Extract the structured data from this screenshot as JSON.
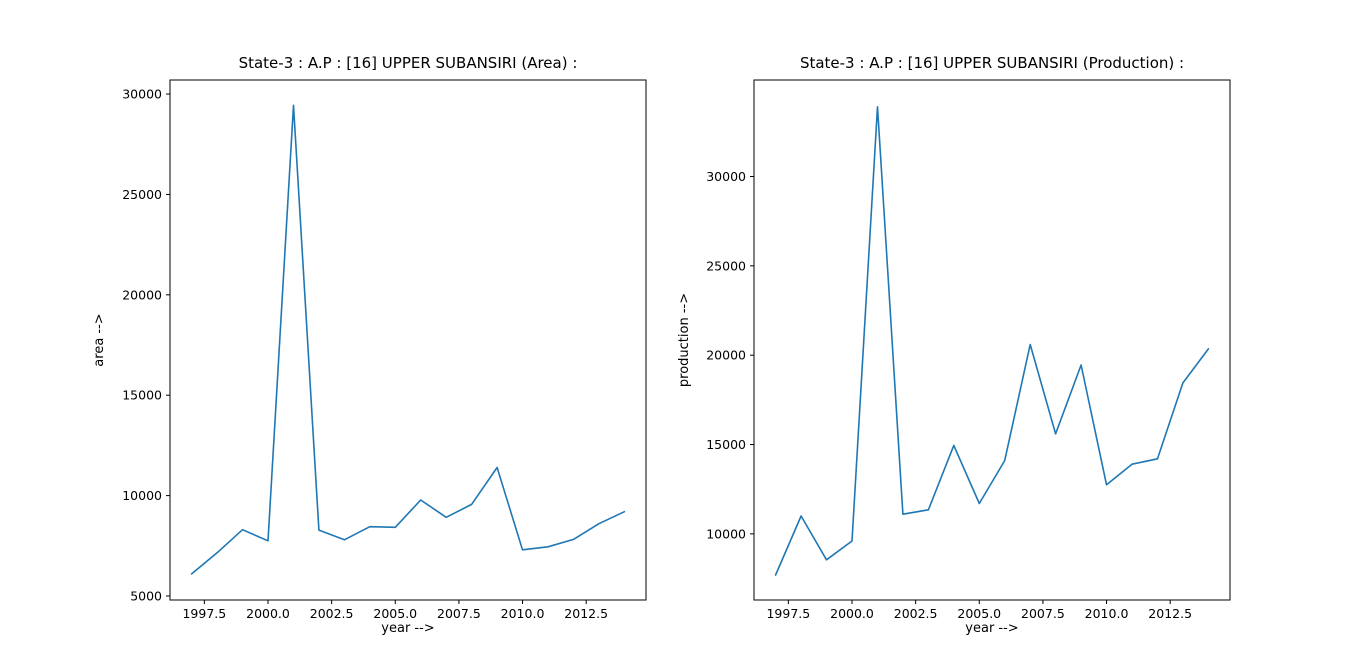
{
  "figure": {
    "background": "#ffffff",
    "text_color": "#000000"
  },
  "chart_data": [
    {
      "type": "line",
      "title": "State-3 : A.P : [16] UPPER SUBANSIRI (Area) :",
      "xlabel": "year -->",
      "ylabel": "area -->",
      "legend": null,
      "grid": false,
      "line_color": "#1f77b4",
      "x": [
        1997,
        1998,
        1999,
        2000,
        2001,
        2002,
        2003,
        2004,
        2005,
        2006,
        2007,
        2008,
        2009,
        2010,
        2011,
        2012,
        2013,
        2014
      ],
      "values": [
        6100,
        7150,
        8300,
        7750,
        29440,
        8280,
        7800,
        8450,
        8420,
        9780,
        8920,
        9560,
        11400,
        7300,
        7450,
        7820,
        8600,
        9200
      ],
      "xlim": [
        1996.15,
        2014.85
      ],
      "ylim": [
        4800,
        30700
      ],
      "xticks": [
        1997.5,
        2000.0,
        2002.5,
        2005.0,
        2007.5,
        2010.0,
        2012.5
      ],
      "xtick_labels": [
        "1997.5",
        "2000.0",
        "2002.5",
        "2005.0",
        "2007.5",
        "2010.0",
        "2012.5"
      ],
      "yticks": [
        5000,
        10000,
        15000,
        20000,
        25000,
        30000
      ],
      "ytick_labels": [
        "5000",
        "10000",
        "15000",
        "20000",
        "25000",
        "30000"
      ]
    },
    {
      "type": "line",
      "title": "State-3 : A.P : [16] UPPER SUBANSIRI (Production) :",
      "xlabel": "year -->",
      "ylabel": "production -->",
      "legend": null,
      "grid": false,
      "line_color": "#1f77b4",
      "x": [
        1997,
        1998,
        1999,
        2000,
        2001,
        2002,
        2003,
        2004,
        2005,
        2006,
        2007,
        2008,
        2009,
        2010,
        2011,
        2012,
        2013,
        2014
      ],
      "values": [
        7700,
        11000,
        8550,
        9600,
        33900,
        11100,
        11350,
        14950,
        11700,
        14100,
        20600,
        15600,
        19450,
        12750,
        13900,
        14200,
        18450,
        20350
      ],
      "xlim": [
        1996.15,
        2014.85
      ],
      "ylim": [
        6300,
        35400
      ],
      "xticks": [
        1997.5,
        2000.0,
        2002.5,
        2005.0,
        2007.5,
        2010.0,
        2012.5
      ],
      "xtick_labels": [
        "1997.5",
        "2000.0",
        "2002.5",
        "2005.0",
        "2007.5",
        "2010.0",
        "2012.5"
      ],
      "yticks": [
        10000,
        15000,
        20000,
        25000,
        30000
      ],
      "ytick_labels": [
        "10000",
        "15000",
        "20000",
        "25000",
        "30000"
      ]
    }
  ]
}
